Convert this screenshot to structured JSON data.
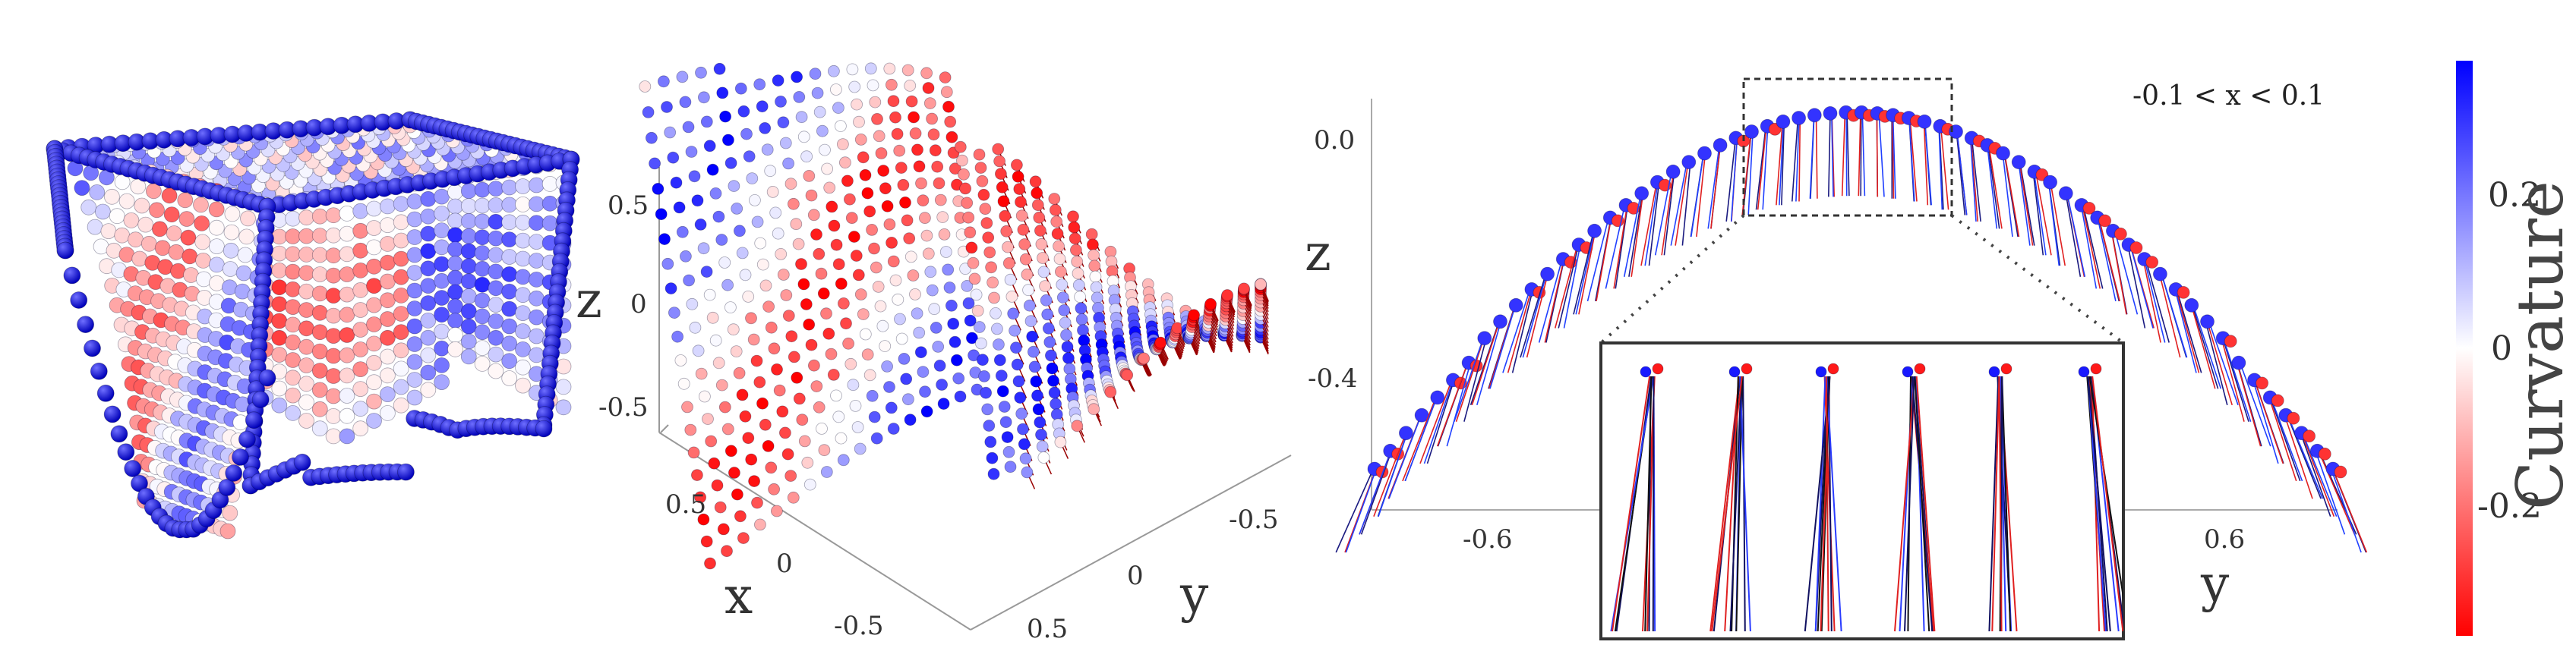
{
  "panel_b": {
    "axes": {
      "x": "x",
      "y": "y",
      "z": "z"
    },
    "z_ticks": [
      "0.5",
      "0",
      "-0.5"
    ],
    "x_ticks": [
      "0.5",
      "0",
      "-0.5"
    ],
    "y_ticks": [
      "-0.5",
      "0",
      "0.5"
    ]
  },
  "panel_c": {
    "axes": {
      "y": "y",
      "z": "z"
    },
    "z_ticks": [
      "0.0",
      "-0.4"
    ],
    "y_ticks": [
      "-0.6",
      "0.6"
    ],
    "range_annotation": "-0.1 < x <  0.1"
  },
  "colorbar": {
    "label": "Curvature",
    "ticks": [
      "0.2",
      "0",
      "-0.2"
    ],
    "colors": {
      "high": "#0000ff",
      "mid": "#ffffff",
      "low": "#ff0000"
    }
  }
}
